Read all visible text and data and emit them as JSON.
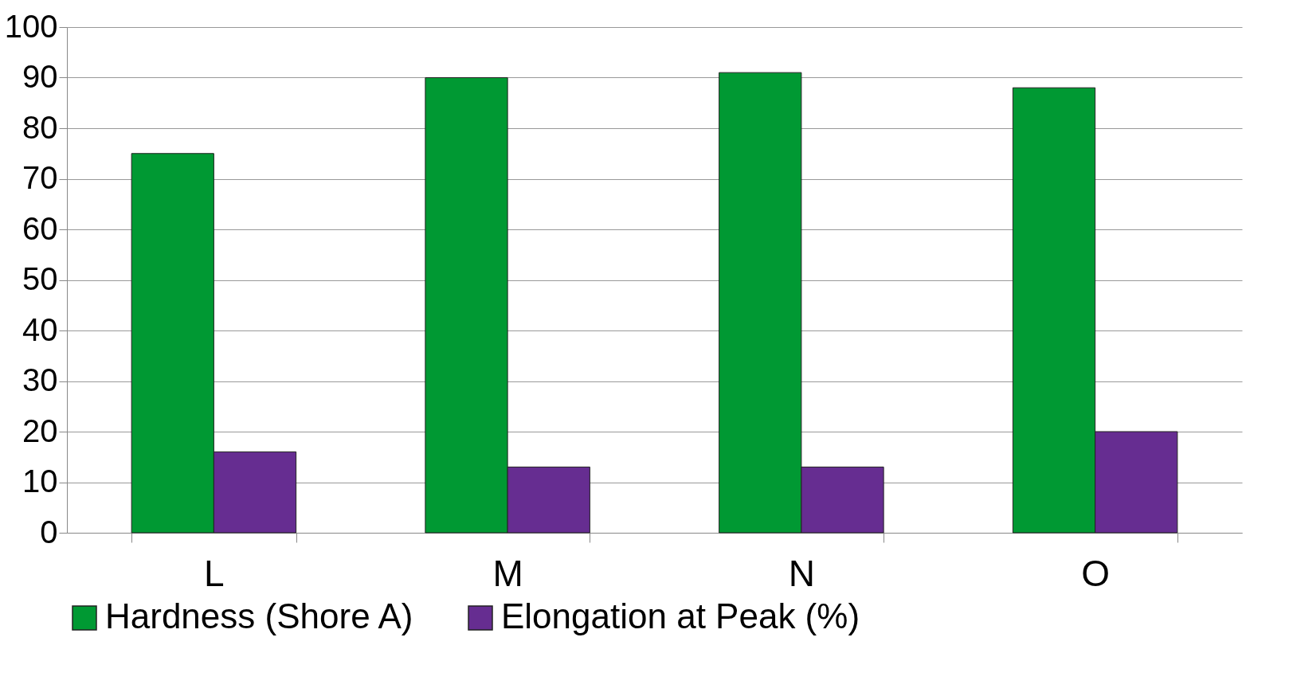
{
  "chart_data": {
    "type": "bar",
    "categories": [
      "L",
      "M",
      "N",
      "O"
    ],
    "series": [
      {
        "name": "Hardness (Shore A)",
        "color": "#009933",
        "values": [
          75,
          90,
          91,
          88
        ]
      },
      {
        "name": "Elongation at Peak (%)",
        "color": "#662d91",
        "values": [
          16,
          13,
          13,
          20
        ]
      }
    ],
    "ylim": [
      0,
      100
    ],
    "yticks": [
      0,
      10,
      20,
      30,
      40,
      50,
      60,
      70,
      80,
      90,
      100
    ],
    "grid": "y",
    "legend": "bottom"
  }
}
